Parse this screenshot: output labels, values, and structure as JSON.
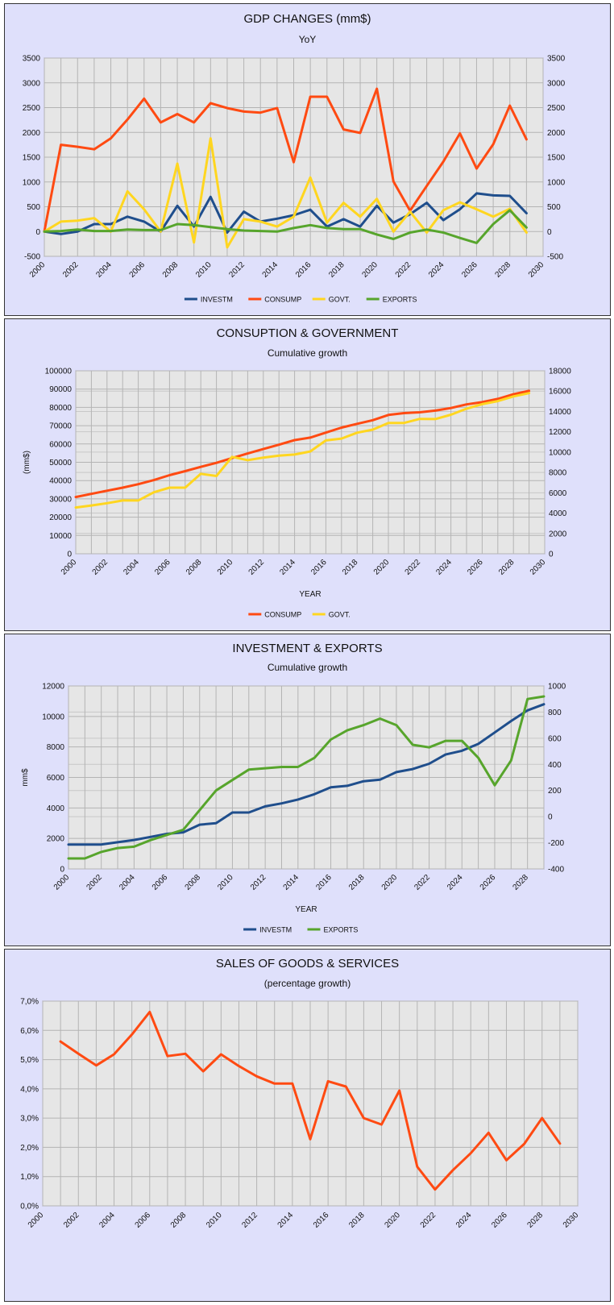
{
  "chart_data": [
    {
      "type": "line",
      "title": "GDP CHANGES (mm$)",
      "subtitle": "YoY",
      "xlabel": "",
      "ylabel": "",
      "x": [
        2000,
        2001,
        2002,
        2003,
        2004,
        2005,
        2006,
        2007,
        2008,
        2009,
        2010,
        2011,
        2012,
        2013,
        2014,
        2015,
        2016,
        2017,
        2018,
        2019,
        2020,
        2021,
        2022,
        2023,
        2024,
        2025,
        2026,
        2027,
        2028,
        2029
      ],
      "xlim": [
        2000,
        2030
      ],
      "xticks": [
        "2000",
        "2002",
        "2004",
        "2006",
        "2008",
        "2010",
        "2012",
        "2014",
        "2016",
        "2018",
        "2020",
        "2022",
        "2024",
        "2026",
        "2028",
        "2030"
      ],
      "ylim": [
        -500,
        3500
      ],
      "yticks": [
        "-500",
        "0",
        "500",
        "1000",
        "1500",
        "2000",
        "2500",
        "3000",
        "3500"
      ],
      "y2ticks": [
        "-500",
        "0",
        "500",
        "1000",
        "1500",
        "2000",
        "2500",
        "3000",
        "3500"
      ],
      "grid": true,
      "legend_position": "bottom",
      "series": [
        {
          "name": "INVESTM",
          "color": "#1f4e8c",
          "axis": "left",
          "values": [
            0,
            -50,
            0,
            150,
            150,
            300,
            200,
            0,
            520,
            100,
            700,
            -20,
            400,
            200,
            260,
            330,
            440,
            100,
            250,
            100,
            520,
            180,
            350,
            580,
            230,
            450,
            770,
            730,
            720,
            370
          ]
        },
        {
          "name": "CONSUMP",
          "color": "#ff4a12",
          "axis": "left",
          "values": [
            0,
            1750,
            1710,
            1660,
            1880,
            2260,
            2680,
            2200,
            2370,
            2200,
            2590,
            2490,
            2420,
            2400,
            2490,
            1400,
            2720,
            2720,
            2060,
            1990,
            2880,
            1010,
            420,
            920,
            1410,
            1980,
            1270,
            1760,
            2540,
            1860
          ]
        },
        {
          "name": "GOVT.",
          "color": "#ffd620",
          "axis": "left",
          "values": [
            0,
            200,
            220,
            270,
            0,
            810,
            450,
            0,
            1370,
            -220,
            1880,
            -320,
            250,
            200,
            100,
            300,
            1090,
            180,
            580,
            300,
            660,
            0,
            400,
            -20,
            430,
            590,
            450,
            300,
            460,
            -20
          ]
        },
        {
          "name": "EXPORTS",
          "color": "#57a52c",
          "axis": "left",
          "values": [
            0,
            10,
            40,
            10,
            10,
            40,
            30,
            30,
            150,
            130,
            90,
            50,
            20,
            10,
            0,
            70,
            130,
            70,
            50,
            50,
            -60,
            -150,
            -20,
            40,
            -20,
            -130,
            -230,
            150,
            430,
            80
          ]
        }
      ]
    },
    {
      "type": "line",
      "title": "CONSUPTION & GOVERNMENT",
      "subtitle": "Cumulative growth",
      "xlabel": "YEAR",
      "ylabel": "(mm$)",
      "x": [
        2000,
        2001,
        2002,
        2003,
        2004,
        2005,
        2006,
        2007,
        2008,
        2009,
        2010,
        2011,
        2012,
        2013,
        2014,
        2015,
        2016,
        2017,
        2018,
        2019,
        2020,
        2021,
        2022,
        2023,
        2024,
        2025,
        2026,
        2027,
        2028,
        2029
      ],
      "xlim": [
        2000,
        2030
      ],
      "xticks": [
        "2000",
        "2002",
        "2004",
        "2006",
        "2008",
        "2010",
        "2012",
        "2014",
        "2016",
        "2018",
        "2020",
        "2022",
        "2024",
        "2026",
        "2028",
        "2030"
      ],
      "ylim": [
        0,
        100000
      ],
      "yticks": [
        "0",
        "10000",
        "20000",
        "30000",
        "40000",
        "50000",
        "60000",
        "70000",
        "80000",
        "90000",
        "100000"
      ],
      "y2lim": [
        0,
        18000
      ],
      "y2ticks": [
        "0",
        "2000",
        "4000",
        "6000",
        "8000",
        "10000",
        "12000",
        "14000",
        "16000",
        "18000"
      ],
      "grid": true,
      "legend_position": "bottom",
      "series": [
        {
          "name": "CONSUMP",
          "color": "#ff4a12",
          "axis": "left",
          "values": [
            31000,
            32750,
            34460,
            36120,
            38000,
            40260,
            42940,
            45140,
            47510,
            49710,
            52300,
            54790,
            57210,
            59610,
            62100,
            63500,
            66220,
            68940,
            71000,
            72990,
            75870,
            76880,
            77300,
            78220,
            79630,
            81610,
            82880,
            84640,
            87180,
            89040
          ]
        },
        {
          "name": "GOVT.",
          "color": "#ffd620",
          "axis": "right",
          "values": [
            4550,
            4750,
            4970,
            5240,
            5240,
            6050,
            6500,
            6500,
            7870,
            7650,
            9530,
            9210,
            9460,
            9660,
            9760,
            10060,
            11150,
            11330,
            11910,
            12210,
            12870,
            12870,
            13270,
            13250,
            13680,
            14270,
            14720,
            15020,
            15480,
            15800
          ]
        }
      ]
    },
    {
      "type": "line",
      "title": "INVESTMENT & EXPORTS",
      "subtitle": "Cumulative growth",
      "xlabel": "YEAR",
      "ylabel": "mm$",
      "x": [
        2000,
        2001,
        2002,
        2003,
        2004,
        2005,
        2006,
        2007,
        2008,
        2009,
        2010,
        2011,
        2012,
        2013,
        2014,
        2015,
        2016,
        2017,
        2018,
        2019,
        2020,
        2021,
        2022,
        2023,
        2024,
        2025,
        2026,
        2027,
        2028,
        2029
      ],
      "xlim": [
        2000,
        2029
      ],
      "xticks": [
        "2000",
        "2002",
        "2004",
        "2006",
        "2008",
        "2010",
        "2012",
        "2014",
        "2016",
        "2018",
        "2020",
        "2022",
        "2024",
        "2026",
        "2028"
      ],
      "ylim": [
        0,
        12000
      ],
      "yticks": [
        "0",
        "2000",
        "4000",
        "6000",
        "8000",
        "10000",
        "12000"
      ],
      "y2lim": [
        -400,
        1000
      ],
      "y2ticks": [
        "-400",
        "-200",
        "0",
        "200",
        "400",
        "600",
        "800",
        "1000"
      ],
      "grid": true,
      "legend_position": "bottom",
      "series": [
        {
          "name": "INVESTM",
          "color": "#1f4e8c",
          "axis": "left",
          "values": [
            1600,
            1600,
            1600,
            1750,
            1900,
            2100,
            2300,
            2400,
            2900,
            3000,
            3700,
            3700,
            4100,
            4300,
            4550,
            4900,
            5350,
            5450,
            5750,
            5850,
            6350,
            6550,
            6900,
            7500,
            7750,
            8200,
            8950,
            9700,
            10400,
            10800
          ]
        },
        {
          "name": "EXPORTS",
          "color": "#57a52c",
          "axis": "right",
          "values": [
            -320,
            -320,
            -270,
            -240,
            -230,
            -180,
            -140,
            -100,
            50,
            200,
            280,
            360,
            370,
            380,
            380,
            450,
            590,
            660,
            700,
            750,
            700,
            550,
            530,
            580,
            580,
            450,
            240,
            430,
            900,
            920
          ]
        }
      ]
    },
    {
      "type": "line",
      "title": "SALES OF GOODS & SERVICES",
      "subtitle": "(percentage growth)",
      "xlabel": "",
      "ylabel": "",
      "x": [
        2001,
        2002,
        2003,
        2004,
        2005,
        2006,
        2007,
        2008,
        2009,
        2010,
        2011,
        2012,
        2013,
        2014,
        2015,
        2016,
        2017,
        2018,
        2019,
        2020,
        2021,
        2022,
        2023,
        2024,
        2025,
        2026,
        2027,
        2028,
        2029
      ],
      "xlim": [
        2000,
        2030
      ],
      "xticks": [
        "2000",
        "2002",
        "2004",
        "2006",
        "2008",
        "2010",
        "2012",
        "2014",
        "2016",
        "2018",
        "2020",
        "2022",
        "2024",
        "2026",
        "2028",
        "2030"
      ],
      "ylim": [
        0,
        7
      ],
      "yticks": [
        "0,0%",
        "1,0%",
        "2,0%",
        "3,0%",
        "4,0%",
        "5,0%",
        "6,0%",
        "7,0%"
      ],
      "grid": true,
      "legend_position": "none",
      "series": [
        {
          "color": "#ff4a12",
          "axis": "left",
          "values": [
            5.62,
            5.2,
            4.8,
            5.18,
            5.86,
            6.63,
            5.12,
            5.2,
            4.6,
            5.18,
            4.78,
            4.43,
            4.18,
            4.18,
            2.28,
            4.26,
            4.08,
            3.0,
            2.78,
            3.94,
            1.34,
            0.56,
            1.22,
            1.8,
            2.5,
            1.56,
            2.12,
            3.0,
            2.13
          ]
        }
      ]
    }
  ]
}
